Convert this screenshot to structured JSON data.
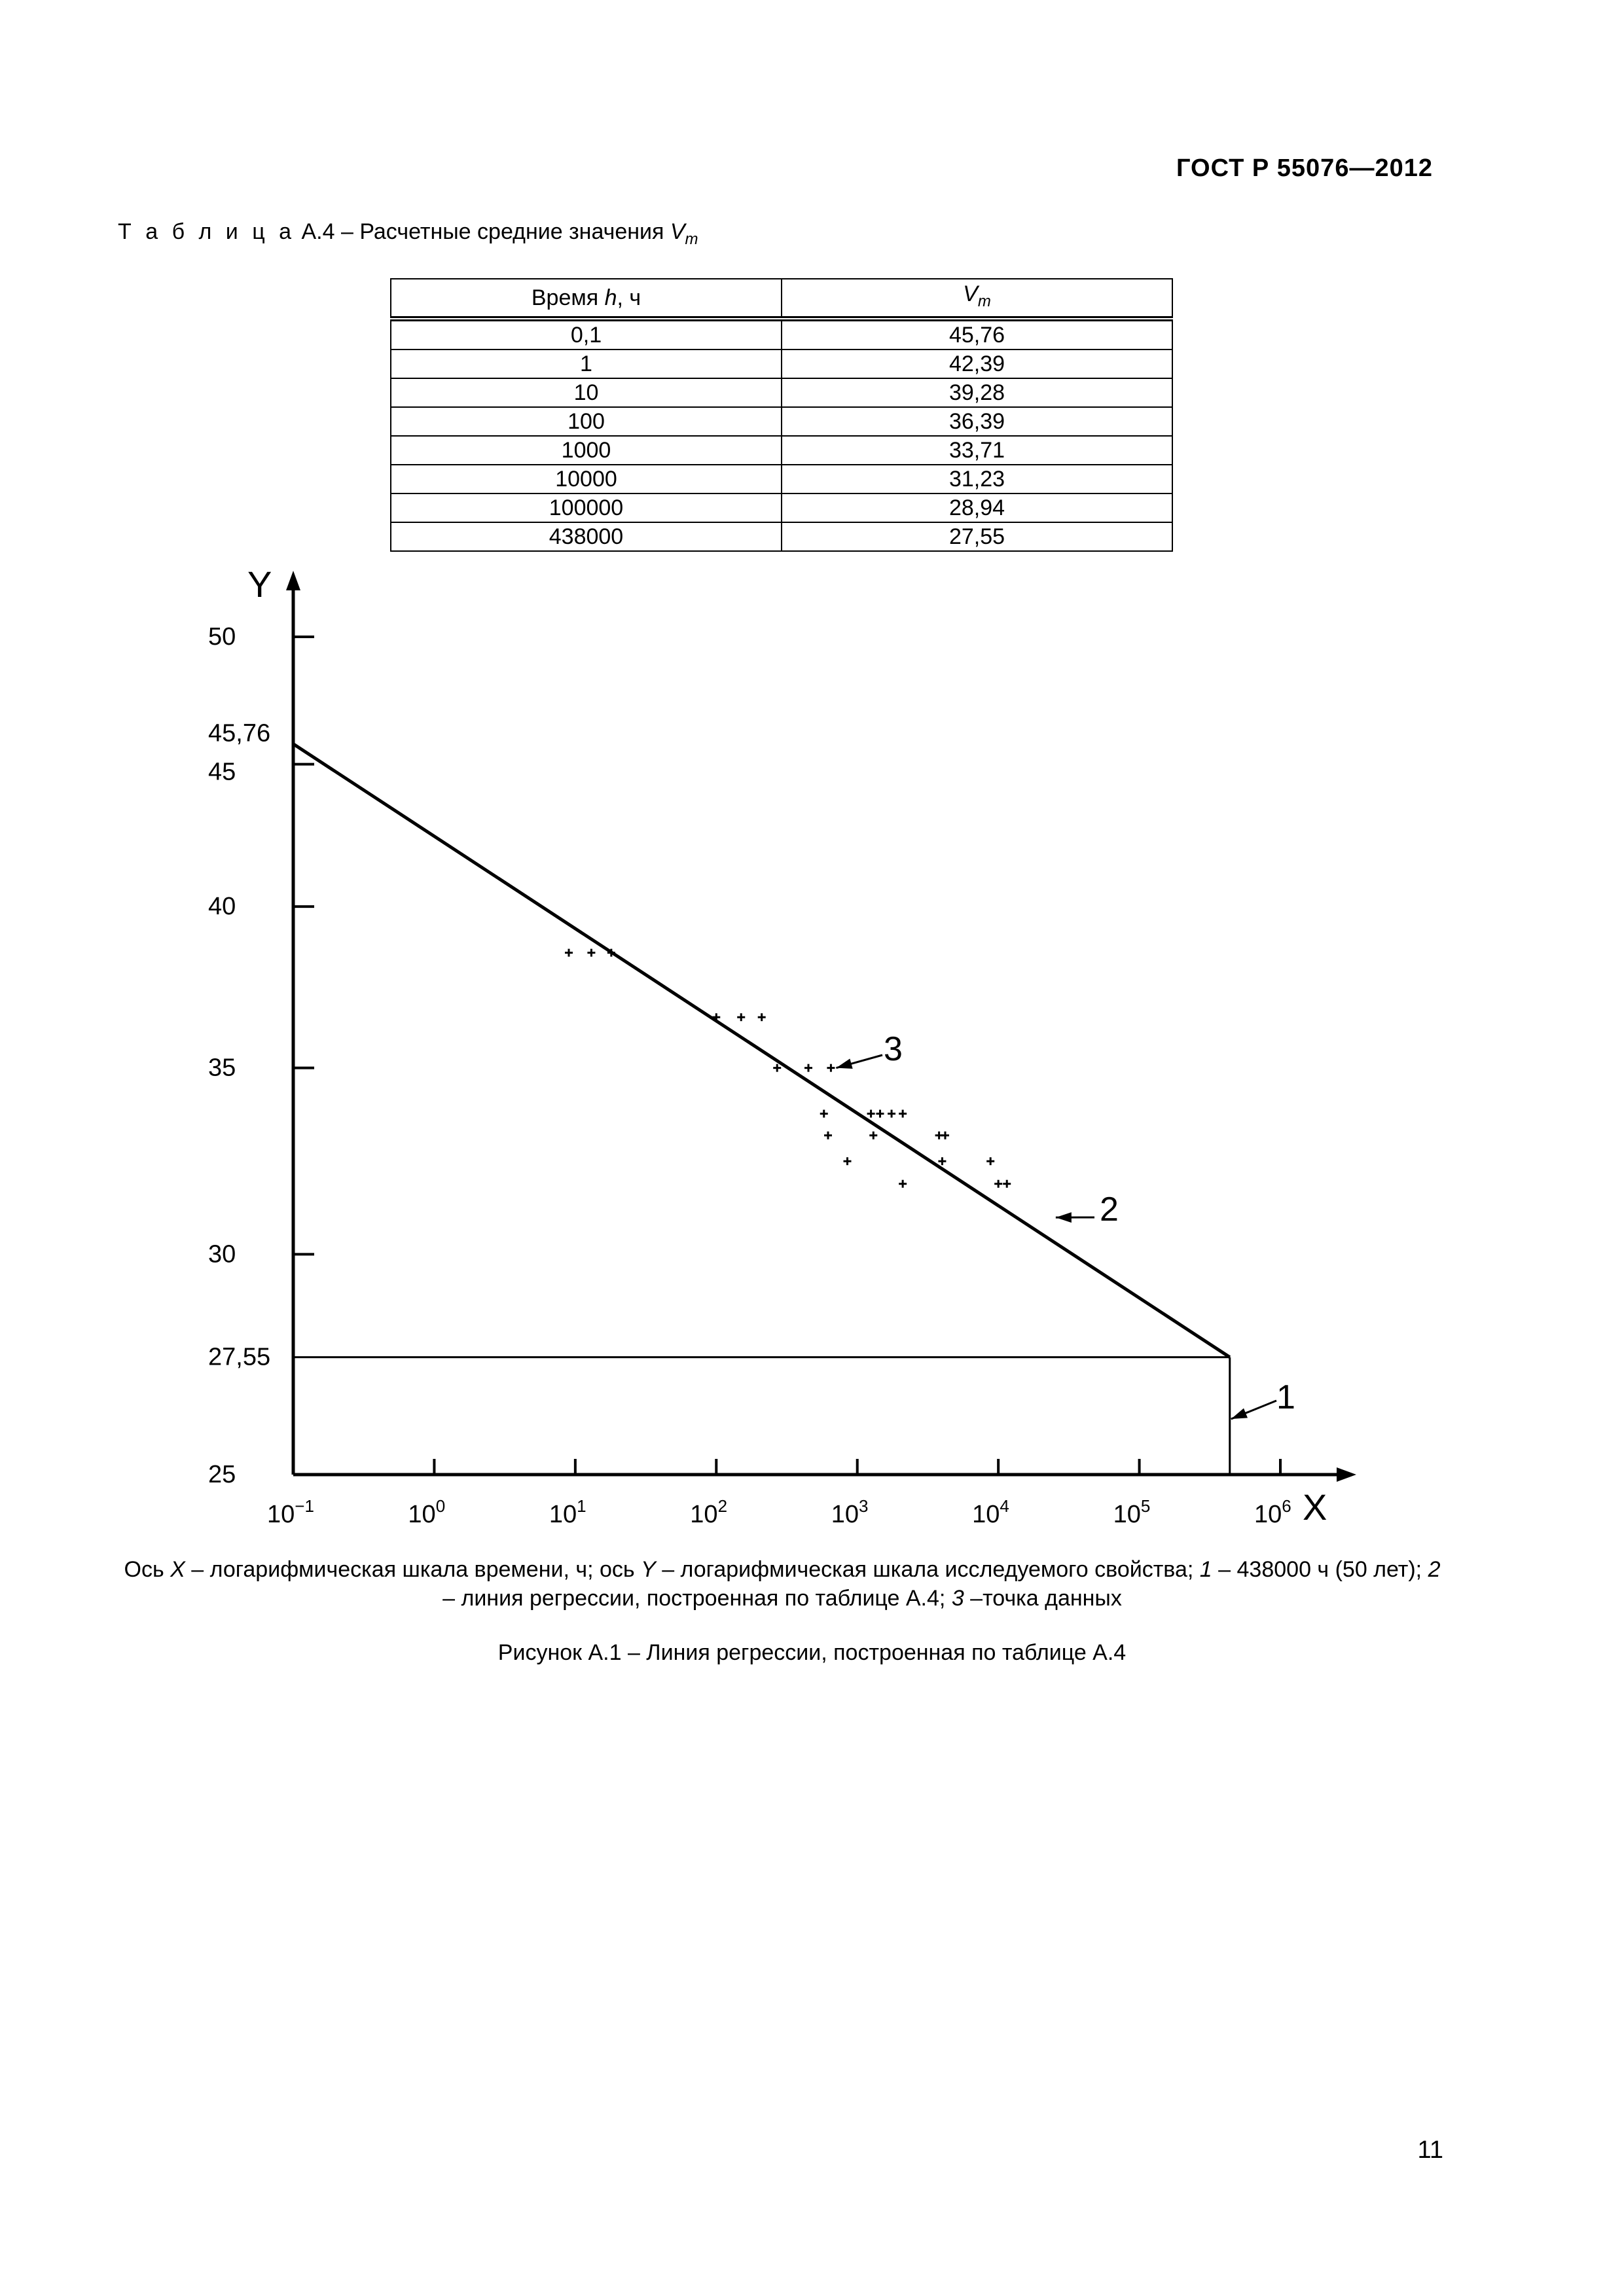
{
  "header": {
    "doc_id": "ГОСТ Р 55076—2012"
  },
  "table": {
    "caption_prefix": "Т а б л и ц а",
    "caption_text": " А.4 – Расчетные средние значения ",
    "caption_var": "V",
    "caption_sub": "m",
    "col1_header_pre": "Время ",
    "col1_header_var": "h",
    "col1_header_post": ", ч",
    "col2_header_var": "V",
    "col2_header_sub": "m",
    "rows": [
      [
        "0,1",
        "45,76"
      ],
      [
        "1",
        "42,39"
      ],
      [
        "10",
        "39,28"
      ],
      [
        "100",
        "36,39"
      ],
      [
        "1000",
        "33,71"
      ],
      [
        "10000",
        "31,23"
      ],
      [
        "100000",
        "28,94"
      ],
      [
        "438000",
        "27,55"
      ]
    ]
  },
  "chart_data": {
    "type": "scatter",
    "x_scale": "log",
    "y_scale": "log",
    "xlabel": "X",
    "ylabel": "Y",
    "xlim": [
      0.1,
      1000000
    ],
    "ylim": [
      25,
      50
    ],
    "x_ticks": [
      {
        "base": "10",
        "exp": "−1",
        "value": 0.1
      },
      {
        "base": "10",
        "exp": "0",
        "value": 1
      },
      {
        "base": "10",
        "exp": "1",
        "value": 10
      },
      {
        "base": "10",
        "exp": "2",
        "value": 100
      },
      {
        "base": "10",
        "exp": "3",
        "value": 1000
      },
      {
        "base": "10",
        "exp": "4",
        "value": 10000
      },
      {
        "base": "10",
        "exp": "5",
        "value": 100000
      },
      {
        "base": "10",
        "exp": "6",
        "value": 1000000
      }
    ],
    "y_ticks": [
      {
        "label": "50",
        "value": 50
      },
      {
        "label": "45,76",
        "value": 45.76
      },
      {
        "label": "45",
        "value": 45
      },
      {
        "label": "40",
        "value": 40
      },
      {
        "label": "35",
        "value": 35
      },
      {
        "label": "30",
        "value": 30
      },
      {
        "label": "27,55",
        "value": 27.55
      },
      {
        "label": "25",
        "value": 25
      }
    ],
    "regression_line": {
      "x": [
        0.1,
        438000
      ],
      "y": [
        45.76,
        27.55
      ]
    },
    "reference_lines": {
      "x": 438000,
      "y": 27.55
    },
    "points": [
      {
        "x": 9,
        "y": 38.5
      },
      {
        "x": 13,
        "y": 38.5
      },
      {
        "x": 18,
        "y": 38.5
      },
      {
        "x": 100,
        "y": 36.5
      },
      {
        "x": 150,
        "y": 36.5
      },
      {
        "x": 210,
        "y": 36.5
      },
      {
        "x": 270,
        "y": 35.0
      },
      {
        "x": 450,
        "y": 35.0
      },
      {
        "x": 650,
        "y": 35.0
      },
      {
        "x": 580,
        "y": 33.7
      },
      {
        "x": 620,
        "y": 33.1
      },
      {
        "x": 850,
        "y": 32.4
      },
      {
        "x": 1250,
        "y": 33.7
      },
      {
        "x": 1450,
        "y": 33.7
      },
      {
        "x": 1750,
        "y": 33.7
      },
      {
        "x": 2100,
        "y": 33.7
      },
      {
        "x": 1300,
        "y": 33.1
      },
      {
        "x": 2100,
        "y": 31.8
      },
      {
        "x": 3800,
        "y": 33.1
      },
      {
        "x": 4200,
        "y": 33.1
      },
      {
        "x": 4000,
        "y": 32.4
      },
      {
        "x": 8800,
        "y": 32.4
      },
      {
        "x": 10000,
        "y": 31.8
      },
      {
        "x": 11500,
        "y": 31.8
      }
    ],
    "annotations": [
      {
        "label": "1"
      },
      {
        "label": "2"
      },
      {
        "label": "3"
      }
    ]
  },
  "legend": {
    "parts": [
      {
        "t": "Ось ",
        "i": false
      },
      {
        "t": "X",
        "i": true
      },
      {
        "t": " – логарифмическая шкала времени, ч; ось ",
        "i": false
      },
      {
        "t": "Y",
        "i": true
      },
      {
        "t": " – логарифмическая шкала исследуемого свойства; ",
        "i": false
      },
      {
        "t": "1",
        "i": true
      },
      {
        "t": " – 438000 ч (50 лет); ",
        "i": false
      },
      {
        "t": "2",
        "i": true
      },
      {
        "t": " – линия регрессии, построенная по таблице А.4; ",
        "i": false
      },
      {
        "t": "3",
        "i": true
      },
      {
        "t": " –точка данных",
        "i": false
      }
    ]
  },
  "figure_caption": "Рисунок А.1 – Линия регрессии, построенная по таблице А.4",
  "page_number": "11"
}
